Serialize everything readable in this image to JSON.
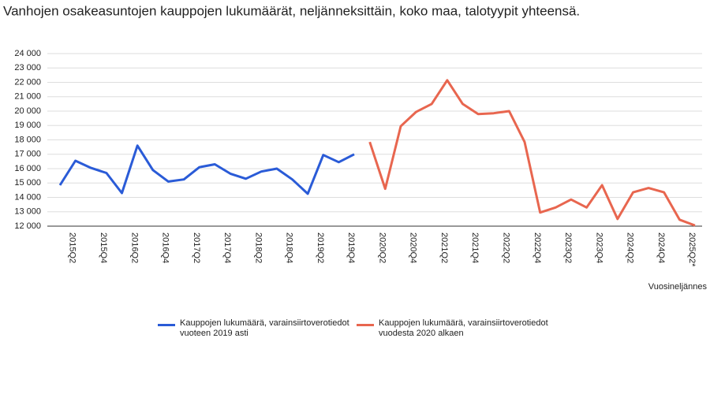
{
  "chart_data": {
    "type": "line",
    "title": "Vanhojen osakeasuntojen kauppojen lukumäärät, neljänneksittäin, koko maa, talotyypit yhteensä.",
    "x_label": "Vuosineljännes",
    "categories": [
      null,
      "2015Q2",
      null,
      "2015Q4",
      null,
      "2016Q2",
      null,
      "2016Q4",
      null,
      "2017Q2",
      null,
      "2017Q4",
      null,
      "2018Q2",
      null,
      "2018Q4",
      null,
      "2019Q2",
      null,
      "2019Q4",
      null,
      "2020Q2",
      null,
      "2020Q4",
      null,
      "2021Q2",
      null,
      "2021Q4",
      null,
      "2022Q2",
      null,
      "2022Q4",
      null,
      "2023Q2",
      null,
      "2023Q4",
      null,
      "2024Q2",
      null,
      "2024Q4",
      null,
      "2025Q2*"
    ],
    "series": [
      {
        "name": "Kauppojen lukumäärä, varainsiirtoverotiedot vuoteen 2019 asti",
        "color": "#2a5bd7",
        "values": [
          14850,
          16550,
          16050,
          15700,
          14300,
          17600,
          15900,
          15100,
          15250,
          16100,
          16300,
          15650,
          15300,
          15800,
          16000,
          15250,
          14250,
          16950,
          16450,
          17000,
          null,
          null,
          null,
          null,
          null,
          null,
          null,
          null,
          null,
          null,
          null,
          null,
          null,
          null,
          null,
          null,
          null,
          null,
          null,
          null,
          null,
          null
        ]
      },
      {
        "name": "Kauppojen lukumäärä, varainsiirtoverotiedot vuodesta 2020 alkaen",
        "color": "#e8664f",
        "values": [
          null,
          null,
          null,
          null,
          null,
          null,
          null,
          null,
          null,
          null,
          null,
          null,
          null,
          null,
          null,
          null,
          null,
          null,
          null,
          null,
          17850,
          14600,
          18950,
          19950,
          20500,
          22150,
          20500,
          19800,
          19850,
          20000,
          17850,
          12950,
          13300,
          13850,
          13300,
          14850,
          12500,
          14350,
          14650,
          14350,
          12450,
          12050
        ]
      }
    ],
    "ylim": [
      12000,
      24000
    ],
    "yticks": [
      {
        "value": 12000,
        "label": "12 000"
      },
      {
        "value": 13000,
        "label": "13 000"
      },
      {
        "value": 14000,
        "label": "14 000"
      },
      {
        "value": 15000,
        "label": "15 000"
      },
      {
        "value": 16000,
        "label": "16 000"
      },
      {
        "value": 17000,
        "label": "17 000"
      },
      {
        "value": 18000,
        "label": "18 000"
      },
      {
        "value": 19000,
        "label": "19 000"
      },
      {
        "value": 20000,
        "label": "20 000"
      },
      {
        "value": 21000,
        "label": "21 000"
      },
      {
        "value": 22000,
        "label": "22 000"
      },
      {
        "value": 23000,
        "label": "23 000"
      },
      {
        "value": 24000,
        "label": "24 000"
      }
    ],
    "grid": true
  }
}
